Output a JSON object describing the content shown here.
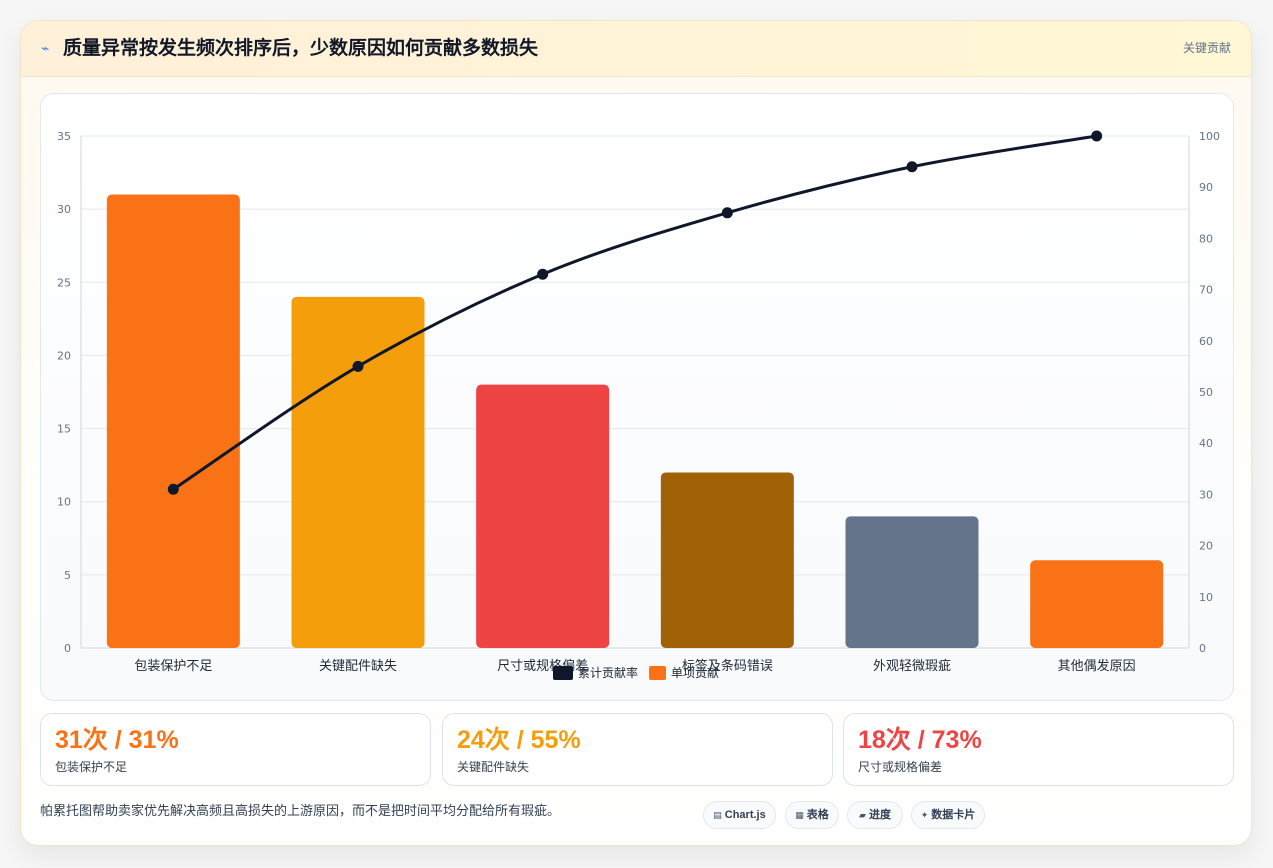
{
  "header": {
    "icon": "lightning-icon",
    "title": "质量异常按发生频次排序后，少数原因如何贡献多数损失",
    "tag": "关键贡献"
  },
  "colors": {
    "bars": [
      "#f97316",
      "#f59e0b",
      "#ef4444",
      "#a16207",
      "#64748b",
      "#f97316"
    ],
    "line": "#0f172a"
  },
  "chart_data": {
    "type": "bar",
    "categories": [
      "包装保护不足",
      "关键配件缺失",
      "尺寸或规格偏差",
      "标签及条码错误",
      "外观轻微瑕疵",
      "其他偶发原因"
    ],
    "series": [
      {
        "name": "单项贡献",
        "type": "bar",
        "axis": "left",
        "values": [
          31,
          24,
          18,
          12,
          9,
          6
        ]
      },
      {
        "name": "累计贡献率",
        "type": "line",
        "axis": "right",
        "values": [
          31,
          55,
          73,
          85,
          94,
          100
        ]
      }
    ],
    "ylim": [
      0,
      35
    ],
    "yticks": [
      "0",
      "5",
      "10",
      "15",
      "20",
      "25",
      "30",
      "35"
    ],
    "y2lim": [
      0,
      100
    ],
    "y2ticks": [
      "0",
      "10",
      "20",
      "30",
      "40",
      "50",
      "60",
      "70",
      "80",
      "90",
      "100"
    ],
    "grid": true,
    "legend_position": "bottom"
  },
  "stats": [
    {
      "value": "31次 / 31%",
      "label": "包装保护不足",
      "color": "#f97316"
    },
    {
      "value": "24次 / 55%",
      "label": "关键配件缺失",
      "color": "#f59e0b"
    },
    {
      "value": "18次 / 73%",
      "label": "尺寸或规格偏差",
      "color": "#ef4444"
    }
  ],
  "footer": {
    "note": "帕累托图帮助卖家优先解决高频且高损失的上游原因，而不是把时间平均分配给所有瑕疵。",
    "chips": [
      {
        "icon": "chart-icon",
        "label": "Chart.js"
      },
      {
        "icon": "table-icon",
        "label": "表格"
      },
      {
        "icon": "progress-icon",
        "label": "进度"
      },
      {
        "icon": "card-icon",
        "label": "数据卡片"
      }
    ]
  }
}
